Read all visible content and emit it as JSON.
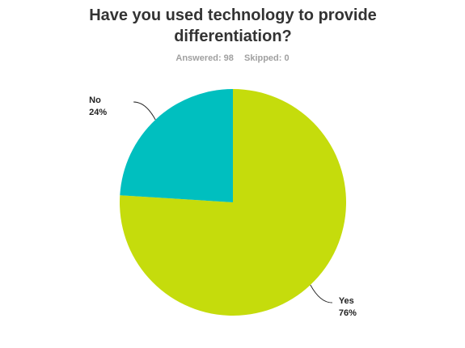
{
  "chart_data": {
    "type": "pie",
    "title": "Have you used technology to provide differentiation?",
    "annotations": [
      "Answered: 98",
      "Skipped: 0"
    ],
    "categories": [
      "Yes",
      "No"
    ],
    "values": [
      76,
      24
    ],
    "value_labels": [
      "76%",
      "24%"
    ],
    "colors": [
      "#c5dc0c",
      "#00bfbf"
    ]
  }
}
